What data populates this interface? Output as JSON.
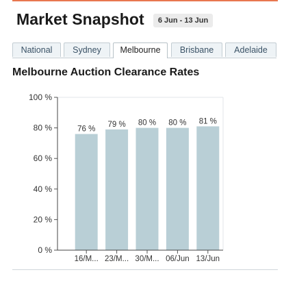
{
  "header": {
    "title": "Market Snapshot",
    "date_range": "6 Jun - 13 Jun"
  },
  "tabs": [
    {
      "label": "National",
      "active": false
    },
    {
      "label": "Sydney",
      "active": false
    },
    {
      "label": "Melbourne",
      "active": true
    },
    {
      "label": "Brisbane",
      "active": false
    },
    {
      "label": "Adelaide",
      "active": false
    }
  ],
  "section": {
    "title": "Melbourne Auction Clearance Rates"
  },
  "colors": {
    "accent_rule": "#e8774f",
    "bar_fill": "#b9cfd6"
  },
  "chart_data": {
    "type": "bar",
    "categories": [
      "16/M...",
      "23/M...",
      "30/M...",
      "06/Jun",
      "13/Jun"
    ],
    "values": [
      76,
      79,
      80,
      80,
      81
    ],
    "value_labels": [
      "76 %",
      "79 %",
      "80 %",
      "80 %",
      "81 %"
    ],
    "y_ticks": [
      0,
      20,
      40,
      60,
      80,
      100
    ],
    "y_tick_labels": [
      "0 %",
      "20 %",
      "40 %",
      "60 %",
      "80 %",
      "100 %"
    ],
    "ylim": [
      0,
      100
    ],
    "grid": false,
    "legend": "none"
  }
}
